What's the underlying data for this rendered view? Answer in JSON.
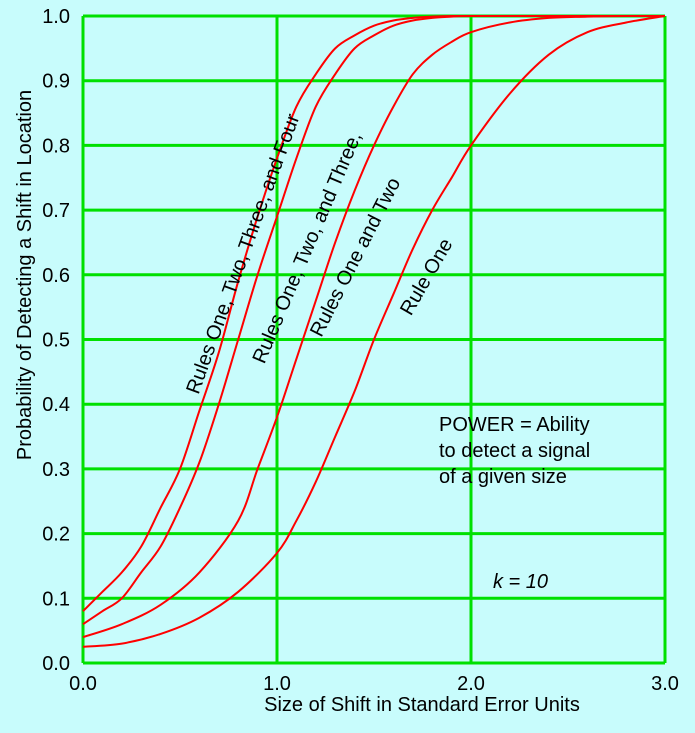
{
  "chart_data": {
    "type": "line",
    "xlabel": "Size of Shift in Standard Error Units",
    "ylabel": "Probability of Detecting a Shift in Location",
    "xlim": [
      0,
      3
    ],
    "ylim": [
      0,
      1
    ],
    "x_ticks": [
      "0.0",
      "1.0",
      "2.0",
      "3.0"
    ],
    "y_ticks": [
      "0.0",
      "0.1",
      "0.2",
      "0.3",
      "0.4",
      "0.5",
      "0.6",
      "0.7",
      "0.8",
      "0.9",
      "1.0"
    ],
    "grid": true,
    "grid_color": "#00e000",
    "line_color": "#ff0000",
    "background_color": "#c8fcfc",
    "series": [
      {
        "name": "Rules One, Two, Three, and Four",
        "x": [
          0,
          0.1,
          0.2,
          0.3,
          0.4,
          0.5,
          0.6,
          0.7,
          0.8,
          0.9,
          1.0,
          1.1,
          1.2,
          1.3,
          1.4,
          1.5,
          1.6,
          1.7,
          1.8,
          1.9,
          2.0,
          2.5,
          3.0
        ],
        "y": [
          0.08,
          0.11,
          0.14,
          0.18,
          0.24,
          0.3,
          0.39,
          0.48,
          0.59,
          0.69,
          0.78,
          0.86,
          0.91,
          0.95,
          0.97,
          0.985,
          0.993,
          0.997,
          0.999,
          1.0,
          1.0,
          1.0,
          1.0
        ]
      },
      {
        "name": "Rules One, Two, and Three,",
        "x": [
          0,
          0.1,
          0.2,
          0.3,
          0.4,
          0.5,
          0.6,
          0.7,
          0.8,
          0.9,
          1.0,
          1.1,
          1.2,
          1.3,
          1.4,
          1.5,
          1.6,
          1.7,
          1.8,
          1.9,
          2.0,
          2.5,
          3.0
        ],
        "y": [
          0.06,
          0.08,
          0.1,
          0.14,
          0.18,
          0.24,
          0.31,
          0.4,
          0.5,
          0.6,
          0.69,
          0.78,
          0.86,
          0.91,
          0.95,
          0.97,
          0.985,
          0.993,
          0.997,
          0.999,
          1.0,
          1.0,
          1.0
        ]
      },
      {
        "name": "Rules One and Two",
        "x": [
          0,
          0.2,
          0.4,
          0.6,
          0.8,
          0.9,
          1.0,
          1.1,
          1.2,
          1.3,
          1.4,
          1.5,
          1.6,
          1.7,
          1.8,
          1.9,
          2.0,
          2.2,
          2.4,
          2.6,
          2.8,
          3.0
        ],
        "y": [
          0.04,
          0.06,
          0.09,
          0.14,
          0.22,
          0.3,
          0.38,
          0.47,
          0.56,
          0.65,
          0.73,
          0.8,
          0.86,
          0.91,
          0.94,
          0.96,
          0.975,
          0.99,
          0.997,
          0.999,
          1.0,
          1.0
        ]
      },
      {
        "name": "Rule One",
        "x": [
          0,
          0.2,
          0.4,
          0.6,
          0.8,
          1.0,
          1.1,
          1.2,
          1.3,
          1.4,
          1.5,
          1.6,
          1.7,
          1.8,
          1.9,
          2.0,
          2.2,
          2.4,
          2.6,
          2.8,
          3.0
        ],
        "y": [
          0.025,
          0.03,
          0.045,
          0.07,
          0.11,
          0.17,
          0.22,
          0.28,
          0.35,
          0.42,
          0.5,
          0.57,
          0.64,
          0.7,
          0.75,
          0.8,
          0.88,
          0.94,
          0.975,
          0.99,
          1.0
        ]
      }
    ],
    "annotations": {
      "power_line1": "POWER = Ability",
      "power_line2": "to detect a signal",
      "power_line3": "of a given size",
      "k_label": "k = 10"
    }
  }
}
